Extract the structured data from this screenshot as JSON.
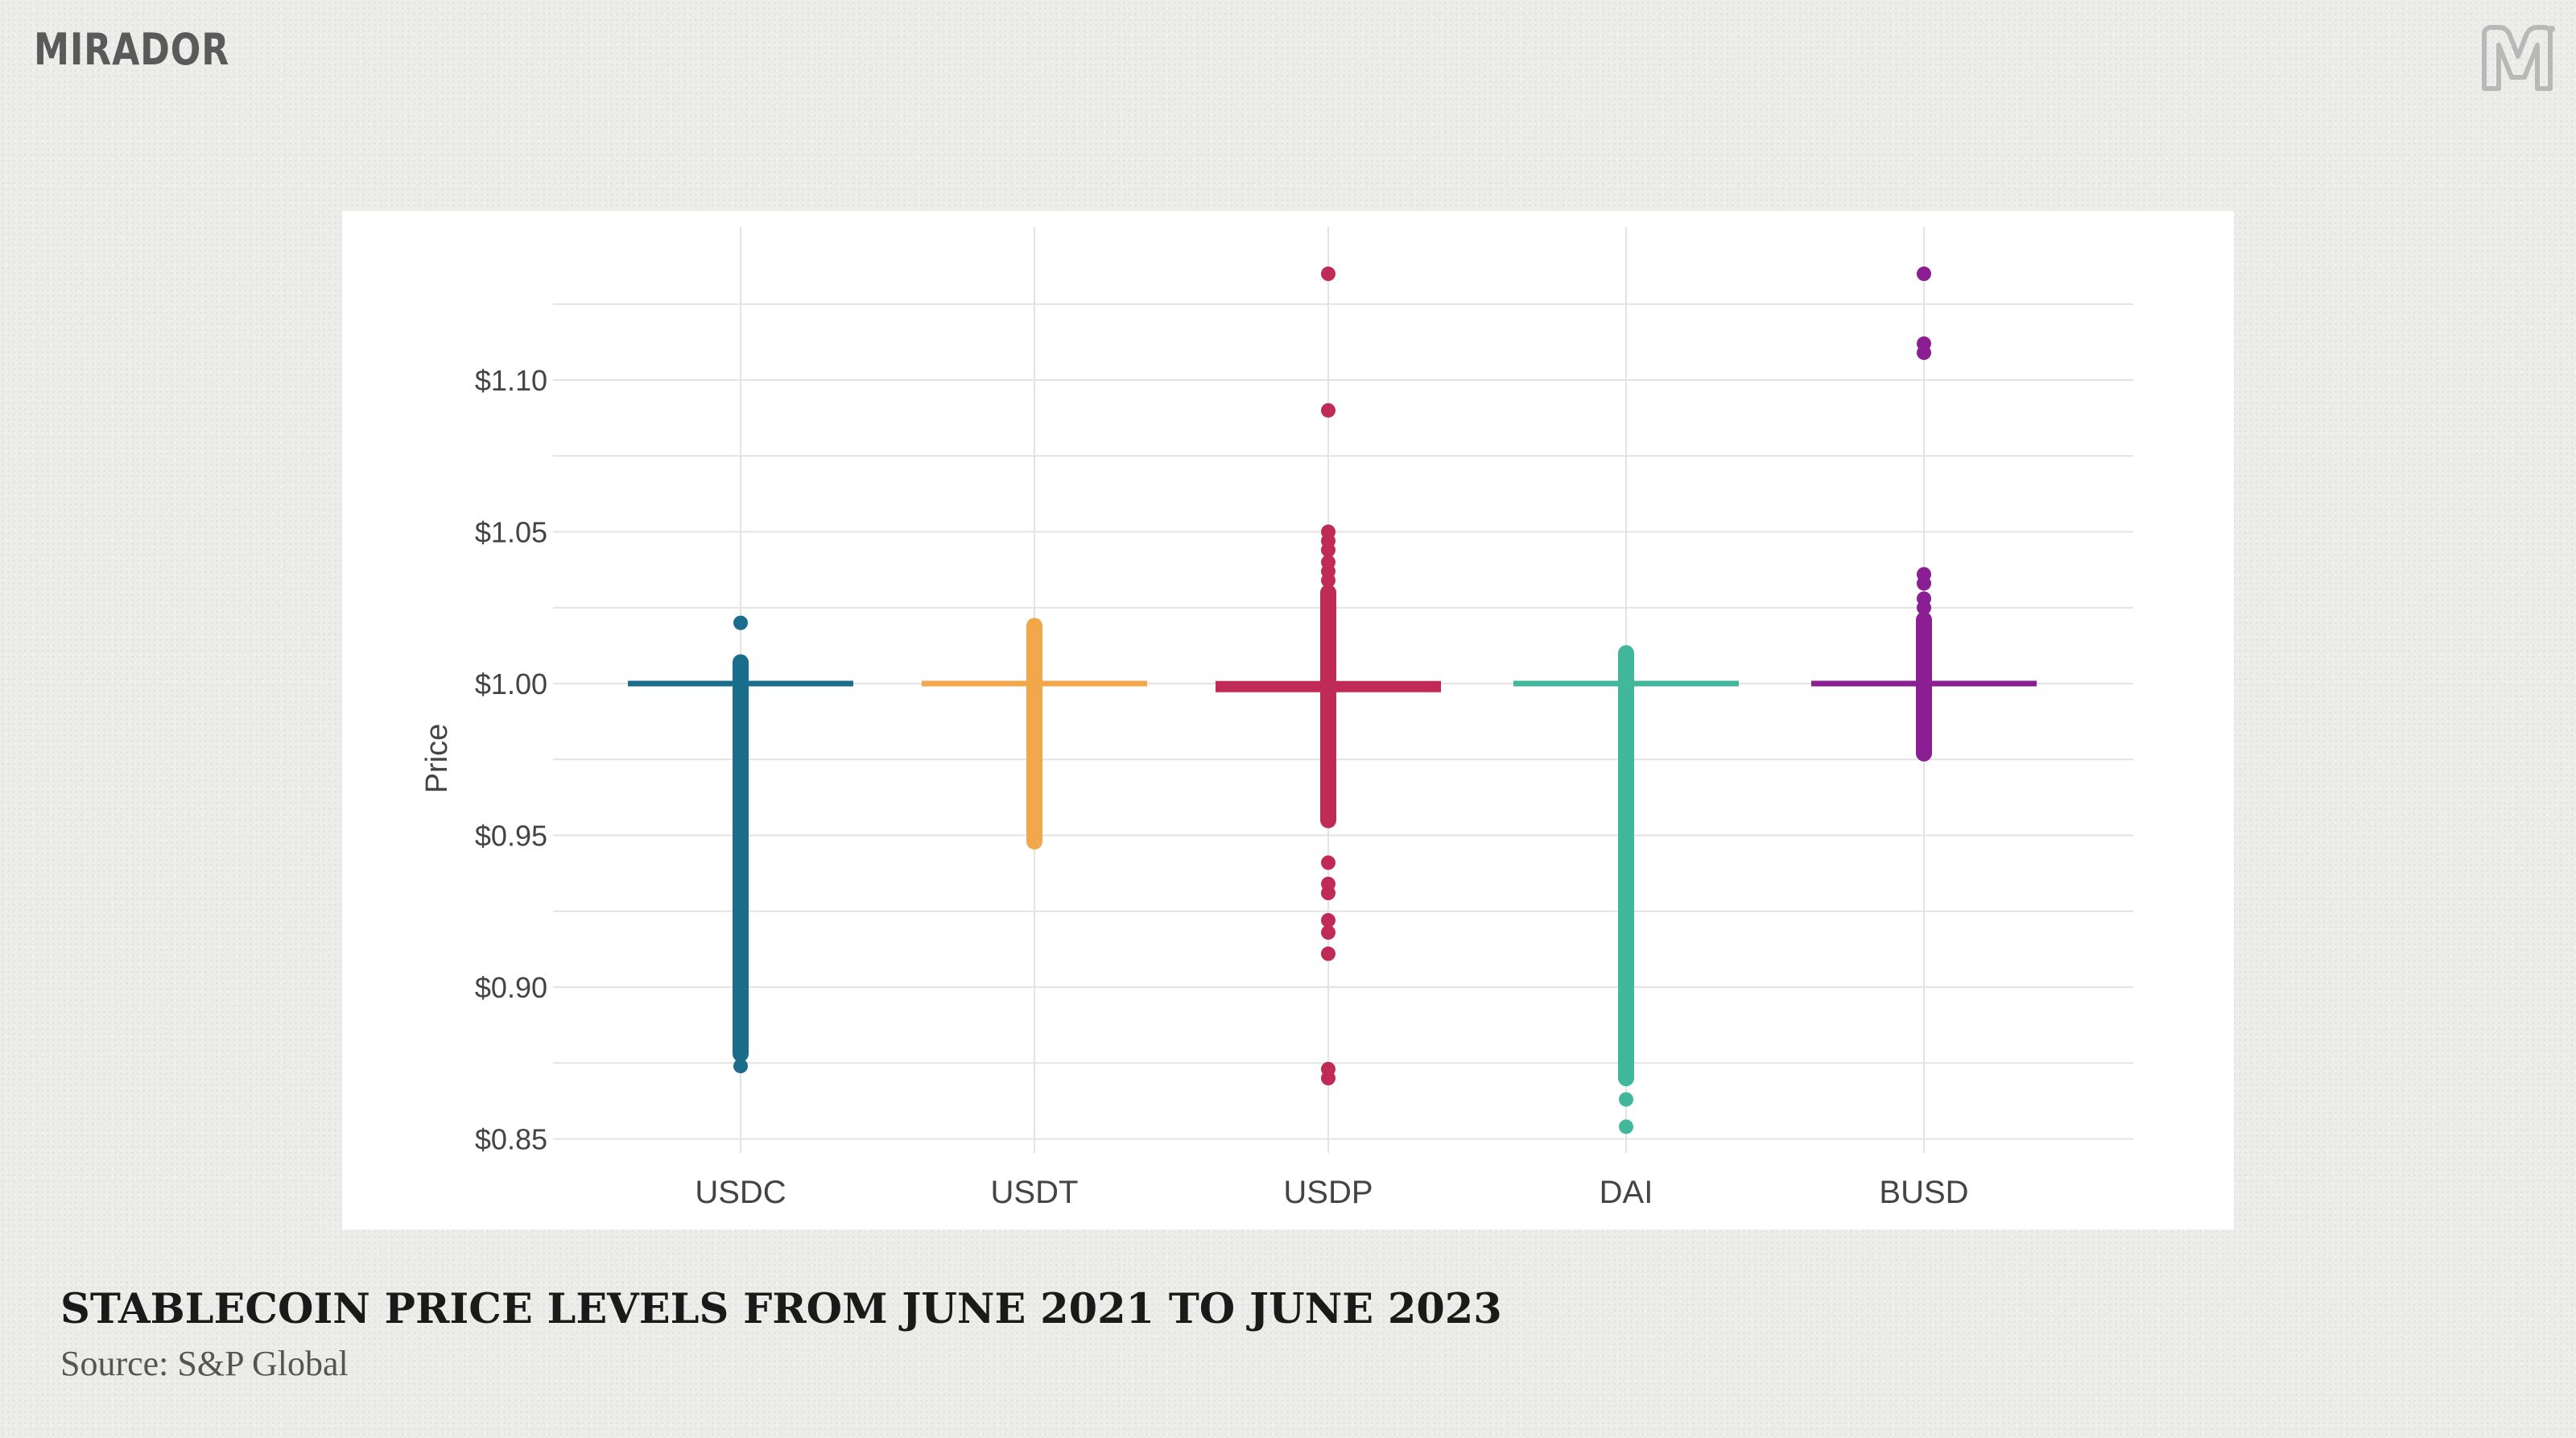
{
  "brand": {
    "name": "MIRADOR",
    "mark_icon": "mirador-m-logo-icon"
  },
  "caption": {
    "title": "STABLECOIN PRICE LEVELS FROM JUNE 2021 TO JUNE 2023",
    "source": "Source: S&P Global"
  },
  "colors": {
    "USDC": "#1b6d8c",
    "USDT": "#f2a74b",
    "USDP": "#c02a56",
    "DAI": "#41b89b",
    "BUSD": "#8a1e92",
    "grid": "#e3e3e3"
  },
  "chart_data": {
    "type": "scatter",
    "title": "",
    "xlabel": "",
    "ylabel": "Price",
    "ylim": [
      0.85,
      1.14
    ],
    "y_ticks": [
      0.85,
      0.9,
      0.95,
      1.0,
      1.05,
      1.1
    ],
    "y_tick_labels": [
      "$0.85",
      "$0.90",
      "$0.95",
      "$1.00",
      "$1.05",
      "$1.10"
    ],
    "grid": true,
    "legend": "none",
    "categories": [
      "USDC",
      "USDT",
      "USDP",
      "DAI",
      "BUSD"
    ],
    "series": [
      {
        "category": "USDC",
        "color": "#1b6d8c",
        "center": 1.0,
        "range": [
          0.878,
          1.007
        ],
        "points": [
          1.02,
          0.874
        ]
      },
      {
        "category": "USDT",
        "color": "#f2a74b",
        "center": 1.0,
        "range": [
          0.948,
          1.019
        ],
        "points": []
      },
      {
        "category": "USDP",
        "color": "#c02a56",
        "center": 0.999,
        "range": [
          0.955,
          1.03
        ],
        "points": [
          1.135,
          1.09,
          1.05,
          1.047,
          1.044,
          1.04,
          1.037,
          1.034,
          0.941,
          0.934,
          0.931,
          0.922,
          0.918,
          0.911,
          0.873,
          0.87
        ]
      },
      {
        "category": "DAI",
        "color": "#41b89b",
        "center": 1.0,
        "range": [
          0.87,
          1.01
        ],
        "points": [
          0.863,
          0.854
        ]
      },
      {
        "category": "BUSD",
        "color": "#8a1e92",
        "center": 1.0,
        "range": [
          0.977,
          1.021
        ],
        "points": [
          1.135,
          1.112,
          1.109,
          1.036,
          1.033,
          1.028,
          1.025
        ]
      }
    ]
  }
}
